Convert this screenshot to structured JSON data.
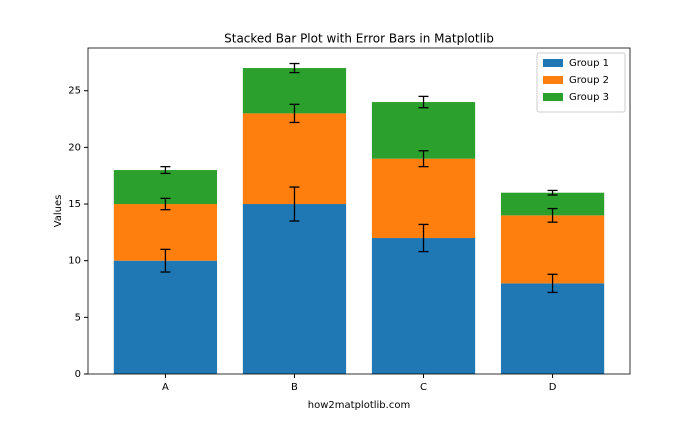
{
  "chart_data": {
    "type": "stacked_bar",
    "title": "Stacked Bar Plot with Error Bars in Matplotlib",
    "y_label": "Values",
    "x_label": "how2matplotlib.com",
    "categories": [
      "A",
      "B",
      "C",
      "D"
    ],
    "series": [
      {
        "name": "Group 1",
        "color": "#1f77b4",
        "values": [
          10,
          15,
          12,
          8
        ],
        "errors": [
          1.0,
          1.5,
          1.2,
          0.8
        ]
      },
      {
        "name": "Group 2",
        "color": "#ff7f0e",
        "values": [
          5,
          8,
          7,
          6
        ],
        "errors": [
          0.5,
          0.8,
          0.7,
          0.6
        ]
      },
      {
        "name": "Group 3",
        "color": "#2ca02c",
        "values": [
          3,
          4,
          5,
          2
        ],
        "errors": [
          0.3,
          0.4,
          0.5,
          0.2
        ]
      }
    ],
    "ylim": [
      0,
      28.77
    ],
    "yticks": [
      0,
      5,
      10,
      15,
      20,
      25
    ],
    "legend": "upper right"
  }
}
